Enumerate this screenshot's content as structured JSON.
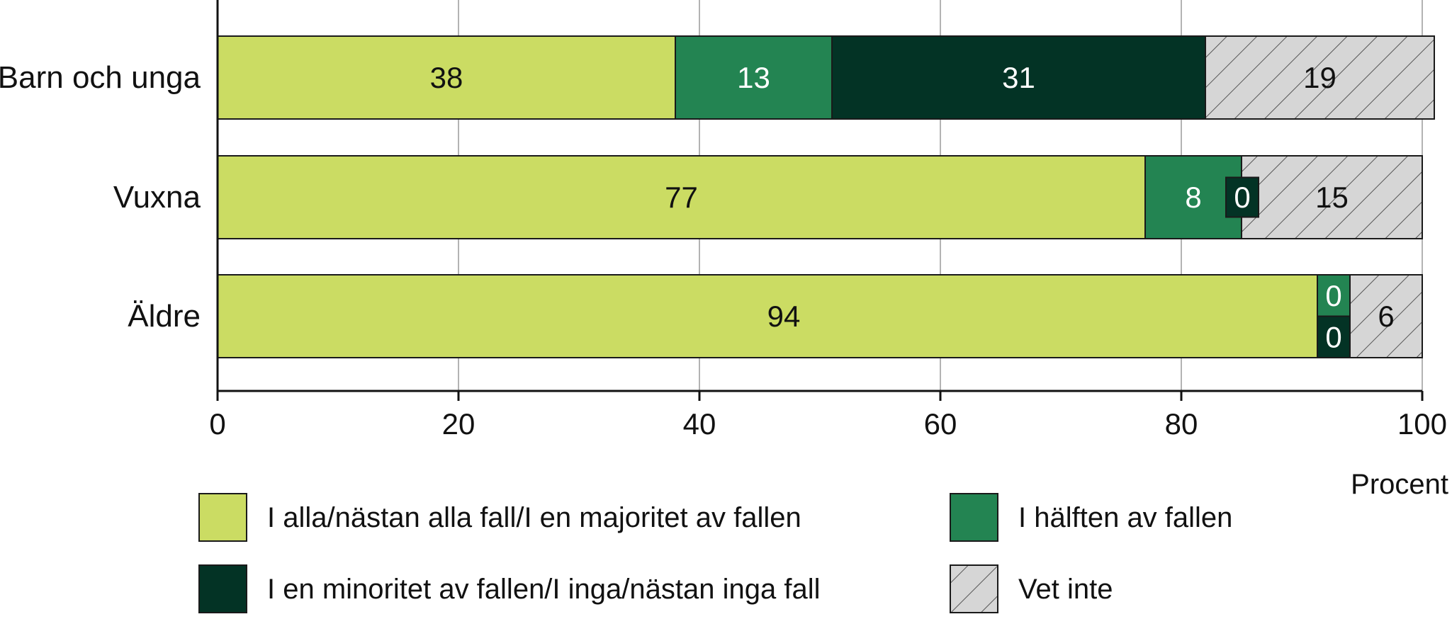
{
  "chart_data": {
    "type": "bar",
    "orientation": "horizontal",
    "stacked": true,
    "categories": [
      "Barn och unga",
      "Vuxna",
      "Äldre"
    ],
    "series": [
      {
        "name": "I alla/nästan alla fall/I en majoritet av fallen",
        "values": [
          38,
          77,
          94
        ],
        "color": "#cbdc63",
        "label_color": "#111111"
      },
      {
        "name": "I hälften av fallen",
        "values": [
          13,
          8,
          0
        ],
        "color": "#238452",
        "label_color": "#ffffff"
      },
      {
        "name": "I en minoritet av fallen/I inga/nästan inga fall",
        "values": [
          31,
          0,
          0
        ],
        "color": "#033325",
        "label_color": "#ffffff"
      },
      {
        "name": "Vet inte",
        "values": [
          19,
          15,
          6
        ],
        "color": "#d6d6d6",
        "label_color": "#111111",
        "pattern": "diagonal-hatch"
      }
    ],
    "xlim": [
      0,
      100
    ],
    "xticks": [
      "0",
      "20",
      "40",
      "60",
      "80",
      "100"
    ],
    "xlabel": "Procent",
    "grid": true,
    "legend_position": "bottom"
  }
}
